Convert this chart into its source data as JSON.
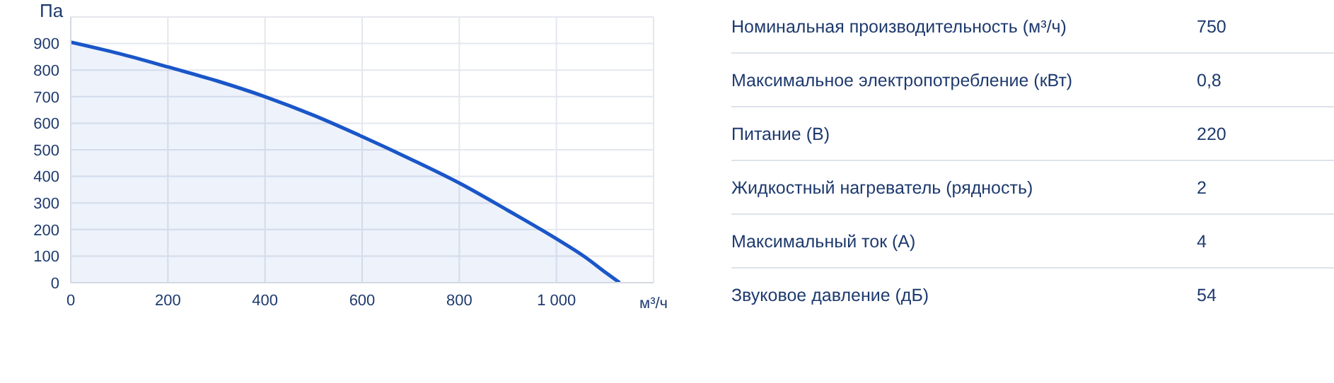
{
  "chart_data": [
    {
      "type": "area",
      "xlabel": "м³/ч",
      "ylabel": "Па",
      "color": "#1a56c8",
      "x": [
        0,
        100,
        200,
        300,
        400,
        500,
        600,
        700,
        800,
        900,
        1000,
        1060,
        1100,
        1130
      ],
      "values": [
        905,
        862,
        812,
        760,
        700,
        630,
        550,
        465,
        375,
        272,
        165,
        95,
        40,
        0
      ],
      "xlim": [
        0,
        1200
      ],
      "ylim": [
        0,
        1000
      ],
      "xticks": [
        0,
        200,
        400,
        600,
        800,
        {
          "value": 1000,
          "label": "1 000"
        },
        {
          "value": 1200,
          "label": null
        }
      ],
      "yticks": [
        0,
        100,
        200,
        300,
        400,
        500,
        600,
        700,
        800,
        900,
        {
          "value": 1000,
          "label": null
        }
      ],
      "grid": true,
      "marker": "none",
      "line_style": "solid"
    },
    {
      "type": "other",
      "annotations": [
        "Номинальная производительность (м³/ч)",
        "750",
        "Максимальное электропотребление (кВт)",
        "0,8",
        "Питание (В)",
        "220",
        "Жидкостный нагреватель (рядность)",
        "2",
        "Максимальный ток (А)",
        "4",
        "Звуковое давление (дБ)",
        "54"
      ]
    }
  ]
}
